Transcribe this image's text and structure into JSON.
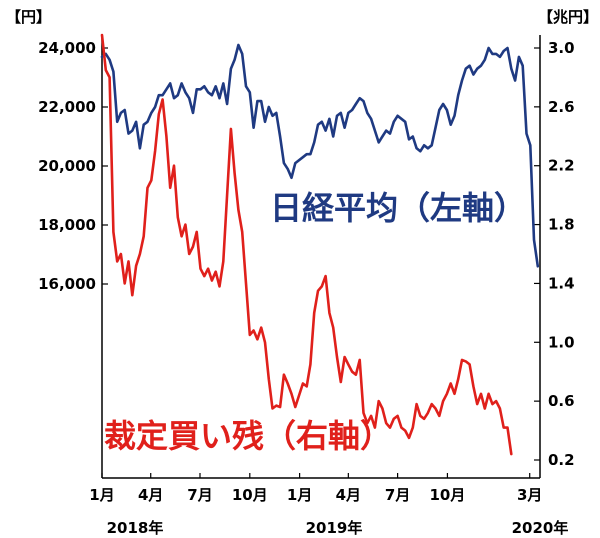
{
  "chart_data": {
    "type": "line",
    "left_axis_unit": "【円】",
    "right_axis_unit": "【兆円】",
    "left_ticks": [
      "24,000",
      "22,000",
      "20,000",
      "18,000",
      "16,000"
    ],
    "left_tick_values": [
      24000,
      22000,
      20000,
      18000,
      16000
    ],
    "right_ticks": [
      "3.0",
      "2.6",
      "2.2",
      "1.8",
      "1.4",
      "1.0",
      "0.6",
      "0.2"
    ],
    "right_tick_values": [
      3.0,
      2.6,
      2.2,
      1.8,
      1.4,
      1.0,
      0.6,
      0.2
    ],
    "left_ylim": [
      10000,
      24000
    ],
    "right_ylim": [
      0.2,
      3.0
    ],
    "x_ticks": [
      "1月",
      "4月",
      "7月",
      "10月",
      "1月",
      "4月",
      "7月",
      "10月",
      "3月"
    ],
    "x_tick_dates": [
      "2018-01-01",
      "2018-04-01",
      "2018-07-01",
      "2018-10-01",
      "2019-01-01",
      "2019-04-01",
      "2019-07-01",
      "2019-10-01",
      "2020-03-01"
    ],
    "year_labels": [
      "2018年",
      "2019年",
      "2020年"
    ],
    "series": [
      {
        "name": "日経平均（左軸）",
        "axis": "left",
        "color": "#1f3a82",
        "points": [
          [
            "2018-01-01",
            23700
          ],
          [
            "2018-01-08",
            23800
          ],
          [
            "2018-01-15",
            23600
          ],
          [
            "2018-01-22",
            23200
          ],
          [
            "2018-01-29",
            21500
          ],
          [
            "2018-02-05",
            21800
          ],
          [
            "2018-02-12",
            21900
          ],
          [
            "2018-02-19",
            21100
          ],
          [
            "2018-02-26",
            21200
          ],
          [
            "2018-03-05",
            21500
          ],
          [
            "2018-03-12",
            20600
          ],
          [
            "2018-03-19",
            21400
          ],
          [
            "2018-03-26",
            21500
          ],
          [
            "2018-04-02",
            21800
          ],
          [
            "2018-04-09",
            22000
          ],
          [
            "2018-04-16",
            22400
          ],
          [
            "2018-04-23",
            22400
          ],
          [
            "2018-04-30",
            22600
          ],
          [
            "2018-05-07",
            22800
          ],
          [
            "2018-05-14",
            22300
          ],
          [
            "2018-05-21",
            22400
          ],
          [
            "2018-05-28",
            22800
          ],
          [
            "2018-06-04",
            22500
          ],
          [
            "2018-06-11",
            22300
          ],
          [
            "2018-06-18",
            21800
          ],
          [
            "2018-06-25",
            22600
          ],
          [
            "2018-07-02",
            22600
          ],
          [
            "2018-07-09",
            22700
          ],
          [
            "2018-07-16",
            22500
          ],
          [
            "2018-07-23",
            22400
          ],
          [
            "2018-07-30",
            22700
          ],
          [
            "2018-08-06",
            22300
          ],
          [
            "2018-08-13",
            22800
          ],
          [
            "2018-08-20",
            22100
          ],
          [
            "2018-08-27",
            23300
          ],
          [
            "2018-09-03",
            23600
          ],
          [
            "2018-09-10",
            24100
          ],
          [
            "2018-09-17",
            23800
          ],
          [
            "2018-09-24",
            22700
          ],
          [
            "2018-10-01",
            22500
          ],
          [
            "2018-10-08",
            21300
          ],
          [
            "2018-10-15",
            22200
          ],
          [
            "2018-10-22",
            22200
          ],
          [
            "2018-10-29",
            21500
          ],
          [
            "2018-11-05",
            22000
          ],
          [
            "2018-11-12",
            21700
          ],
          [
            "2018-11-19",
            21800
          ],
          [
            "2018-11-26",
            21000
          ],
          [
            "2018-12-03",
            20100
          ],
          [
            "2018-12-10",
            19900
          ],
          [
            "2018-12-17",
            19600
          ],
          [
            "2018-12-24",
            20100
          ],
          [
            "2019-01-07",
            20300
          ],
          [
            "2019-01-14",
            20400
          ],
          [
            "2019-01-21",
            20400
          ],
          [
            "2019-01-28",
            20800
          ],
          [
            "2019-02-04",
            21400
          ],
          [
            "2019-02-11",
            21500
          ],
          [
            "2019-02-18",
            21200
          ],
          [
            "2019-02-25",
            21600
          ],
          [
            "2019-03-04",
            21000
          ],
          [
            "2019-03-11",
            21700
          ],
          [
            "2019-03-18",
            21800
          ],
          [
            "2019-03-25",
            21300
          ],
          [
            "2019-04-01",
            21800
          ],
          [
            "2019-04-08",
            21900
          ],
          [
            "2019-04-15",
            22100
          ],
          [
            "2019-04-22",
            22300
          ],
          [
            "2019-04-29",
            22200
          ],
          [
            "2019-05-06",
            21800
          ],
          [
            "2019-05-13",
            21600
          ],
          [
            "2019-05-20",
            21200
          ],
          [
            "2019-05-27",
            20800
          ],
          [
            "2019-06-03",
            21000
          ],
          [
            "2019-06-10",
            21200
          ],
          [
            "2019-06-17",
            21100
          ],
          [
            "2019-06-24",
            21500
          ],
          [
            "2019-07-01",
            21700
          ],
          [
            "2019-07-08",
            21600
          ],
          [
            "2019-07-15",
            21500
          ],
          [
            "2019-07-22",
            20900
          ],
          [
            "2019-07-29",
            21000
          ],
          [
            "2019-08-05",
            20600
          ],
          [
            "2019-08-12",
            20500
          ],
          [
            "2019-08-19",
            20700
          ],
          [
            "2019-08-26",
            20600
          ],
          [
            "2019-09-02",
            20700
          ],
          [
            "2019-09-09",
            21300
          ],
          [
            "2019-09-16",
            21900
          ],
          [
            "2019-09-23",
            22100
          ],
          [
            "2019-09-30",
            21900
          ],
          [
            "2019-10-07",
            21400
          ],
          [
            "2019-10-14",
            21700
          ],
          [
            "2019-10-21",
            22400
          ],
          [
            "2019-10-28",
            22900
          ],
          [
            "2019-11-04",
            23300
          ],
          [
            "2019-11-11",
            23400
          ],
          [
            "2019-11-18",
            23100
          ],
          [
            "2019-11-25",
            23300
          ],
          [
            "2019-12-02",
            23400
          ],
          [
            "2019-12-09",
            23600
          ],
          [
            "2019-12-16",
            24000
          ],
          [
            "2019-12-23",
            23800
          ],
          [
            "2019-12-30",
            23800
          ],
          [
            "2020-01-06",
            23700
          ],
          [
            "2020-01-13",
            23900
          ],
          [
            "2020-01-20",
            24000
          ],
          [
            "2020-01-27",
            23300
          ],
          [
            "2020-02-03",
            22900
          ],
          [
            "2020-02-10",
            23700
          ],
          [
            "2020-02-17",
            23400
          ],
          [
            "2020-02-24",
            21100
          ],
          [
            "2020-03-02",
            20700
          ],
          [
            "2020-03-09",
            17500
          ],
          [
            "2020-03-16",
            16600
          ]
        ]
      },
      {
        "name": "裁定買い残（右軸）",
        "axis": "right",
        "color": "#e0201b",
        "points": [
          [
            "2018-01-01",
            3.2
          ],
          [
            "2018-01-08",
            2.85
          ],
          [
            "2018-01-15",
            2.8
          ],
          [
            "2018-01-22",
            1.75
          ],
          [
            "2018-01-29",
            1.55
          ],
          [
            "2018-02-05",
            1.6
          ],
          [
            "2018-02-12",
            1.4
          ],
          [
            "2018-02-19",
            1.55
          ],
          [
            "2018-02-26",
            1.32
          ],
          [
            "2018-03-05",
            1.52
          ],
          [
            "2018-03-12",
            1.6
          ],
          [
            "2018-03-19",
            1.72
          ],
          [
            "2018-03-26",
            2.05
          ],
          [
            "2018-04-02",
            2.1
          ],
          [
            "2018-04-09",
            2.3
          ],
          [
            "2018-04-16",
            2.55
          ],
          [
            "2018-04-23",
            2.65
          ],
          [
            "2018-04-30",
            2.4
          ],
          [
            "2018-05-07",
            2.05
          ],
          [
            "2018-05-14",
            2.2
          ],
          [
            "2018-05-21",
            1.85
          ],
          [
            "2018-05-28",
            1.72
          ],
          [
            "2018-06-04",
            1.8
          ],
          [
            "2018-06-11",
            1.6
          ],
          [
            "2018-06-18",
            1.65
          ],
          [
            "2018-06-25",
            1.75
          ],
          [
            "2018-07-02",
            1.5
          ],
          [
            "2018-07-09",
            1.45
          ],
          [
            "2018-07-16",
            1.5
          ],
          [
            "2018-07-23",
            1.42
          ],
          [
            "2018-07-30",
            1.48
          ],
          [
            "2018-08-06",
            1.38
          ],
          [
            "2018-08-13",
            1.55
          ],
          [
            "2018-08-20",
            2.0
          ],
          [
            "2018-08-27",
            2.45
          ],
          [
            "2018-09-03",
            2.15
          ],
          [
            "2018-09-10",
            1.9
          ],
          [
            "2018-09-17",
            1.75
          ],
          [
            "2018-09-24",
            1.4
          ],
          [
            "2018-10-01",
            1.05
          ],
          [
            "2018-10-08",
            1.08
          ],
          [
            "2018-10-15",
            1.02
          ],
          [
            "2018-10-22",
            1.1
          ],
          [
            "2018-10-29",
            1.0
          ],
          [
            "2018-11-05",
            0.75
          ],
          [
            "2018-11-12",
            0.55
          ],
          [
            "2018-11-19",
            0.57
          ],
          [
            "2018-11-26",
            0.56
          ],
          [
            "2018-12-03",
            0.78
          ],
          [
            "2018-12-10",
            0.72
          ],
          [
            "2018-12-17",
            0.65
          ],
          [
            "2018-12-24",
            0.56
          ],
          [
            "2019-01-07",
            0.72
          ],
          [
            "2019-01-14",
            0.7
          ],
          [
            "2019-01-21",
            0.85
          ],
          [
            "2019-01-28",
            1.2
          ],
          [
            "2019-02-04",
            1.35
          ],
          [
            "2019-02-11",
            1.38
          ],
          [
            "2019-02-18",
            1.45
          ],
          [
            "2019-02-25",
            1.2
          ],
          [
            "2019-03-04",
            1.1
          ],
          [
            "2019-03-11",
            0.9
          ],
          [
            "2019-03-18",
            0.73
          ],
          [
            "2019-03-25",
            0.9
          ],
          [
            "2019-04-01",
            0.85
          ],
          [
            "2019-04-08",
            0.8
          ],
          [
            "2019-04-15",
            0.78
          ],
          [
            "2019-04-22",
            0.88
          ],
          [
            "2019-04-29",
            0.52
          ],
          [
            "2019-05-06",
            0.45
          ],
          [
            "2019-05-13",
            0.5
          ],
          [
            "2019-05-20",
            0.42
          ],
          [
            "2019-05-27",
            0.6
          ],
          [
            "2019-06-03",
            0.55
          ],
          [
            "2019-06-10",
            0.45
          ],
          [
            "2019-06-17",
            0.42
          ],
          [
            "2019-06-24",
            0.48
          ],
          [
            "2019-07-01",
            0.5
          ],
          [
            "2019-07-08",
            0.42
          ],
          [
            "2019-07-15",
            0.4
          ],
          [
            "2019-07-22",
            0.35
          ],
          [
            "2019-07-29",
            0.42
          ],
          [
            "2019-08-05",
            0.58
          ],
          [
            "2019-08-12",
            0.5
          ],
          [
            "2019-08-19",
            0.48
          ],
          [
            "2019-08-26",
            0.52
          ],
          [
            "2019-09-02",
            0.58
          ],
          [
            "2019-09-09",
            0.55
          ],
          [
            "2019-09-16",
            0.5
          ],
          [
            "2019-09-23",
            0.6
          ],
          [
            "2019-09-30",
            0.65
          ],
          [
            "2019-10-07",
            0.72
          ],
          [
            "2019-10-14",
            0.65
          ],
          [
            "2019-10-21",
            0.75
          ],
          [
            "2019-10-28",
            0.88
          ],
          [
            "2019-11-04",
            0.87
          ],
          [
            "2019-11-11",
            0.85
          ],
          [
            "2019-11-18",
            0.7
          ],
          [
            "2019-11-25",
            0.58
          ],
          [
            "2019-12-02",
            0.65
          ],
          [
            "2019-12-09",
            0.55
          ],
          [
            "2019-12-16",
            0.65
          ],
          [
            "2019-12-23",
            0.58
          ],
          [
            "2019-12-30",
            0.6
          ],
          [
            "2020-01-06",
            0.55
          ],
          [
            "2020-01-13",
            0.42
          ],
          [
            "2020-01-20",
            0.42
          ],
          [
            "2020-01-27",
            0.24
          ]
        ]
      }
    ]
  }
}
